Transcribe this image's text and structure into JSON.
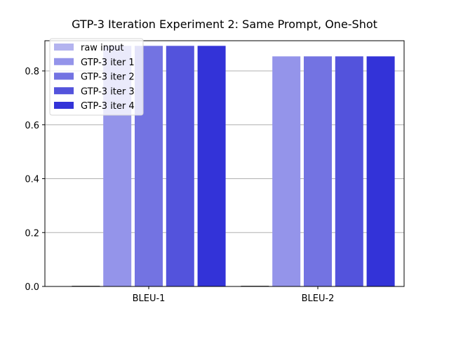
{
  "chart_data": {
    "type": "bar",
    "title": "GTP-3 Iteration Experiment 2: Same Prompt, One-Shot",
    "xlabel": "",
    "ylabel": "",
    "categories": [
      "BLEU-1",
      "BLEU-2"
    ],
    "ylim": [
      0,
      0.9
    ],
    "yticks": [
      0.0,
      0.2,
      0.4,
      0.6,
      0.8
    ],
    "ytick_labels": [
      "0.0",
      "0.2",
      "0.4",
      "0.6",
      "0.8"
    ],
    "grid": "y",
    "legend_position": "top-left",
    "series": [
      {
        "name": "raw input",
        "color": "#b3b3ef",
        "values": [
          0.0,
          0.0
        ]
      },
      {
        "name": "GTP-3 iter 1",
        "color": "#9494ea",
        "values": [
          0.893,
          0.854
        ]
      },
      {
        "name": "GTP-3 iter 2",
        "color": "#7373e2",
        "values": [
          0.893,
          0.854
        ]
      },
      {
        "name": "GTP-3 iter 3",
        "color": "#5353dc",
        "values": [
          0.893,
          0.854
        ]
      },
      {
        "name": "GTP-3 iter 4",
        "color": "#3333d8",
        "values": [
          0.893,
          0.854
        ]
      }
    ]
  }
}
